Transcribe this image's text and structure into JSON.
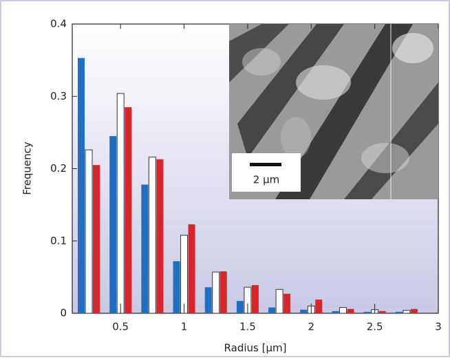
{
  "chart_data": {
    "type": "bar",
    "x_label": "Radius [µm]",
    "y_label": "Frequency",
    "x": [
      0.25,
      0.5,
      0.75,
      1,
      1.25,
      1.5,
      1.75,
      2,
      2.25,
      2.5,
      2.75
    ],
    "series": [
      {
        "color": "#1f6fc4",
        "values": [
          0.353,
          0.245,
          0.178,
          0.072,
          0.036,
          0.017,
          0.008,
          0.005,
          0.003,
          0.002,
          0.002
        ]
      },
      {
        "color": "#ffffff",
        "values": [
          0.226,
          0.304,
          0.216,
          0.108,
          0.057,
          0.036,
          0.033,
          0.01,
          0.008,
          0.005,
          0.004
        ]
      },
      {
        "color": "#d8242b",
        "values": [
          0.205,
          0.285,
          0.213,
          0.123,
          0.058,
          0.039,
          0.027,
          0.019,
          0.006,
          0.003,
          0.006
        ]
      }
    ],
    "xlim": [
      0.12,
      3
    ],
    "xticks": [
      0.5,
      1,
      1.5,
      2,
      2.5,
      3
    ],
    "ylim": [
      0,
      0.4
    ],
    "yticks": [
      0,
      0.1,
      0.2,
      0.3,
      0.4
    ],
    "inset_scale_label": "2 µm"
  }
}
